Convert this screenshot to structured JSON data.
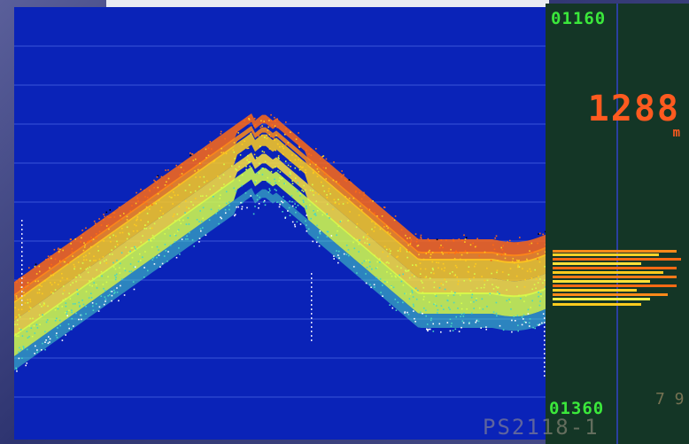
{
  "echogram": {
    "colors": {
      "water": "#0a23b8",
      "strong": "#ff6a14",
      "medium": "#ffcc1e",
      "weak": "#d6ff4a",
      "faint": "#49d6c4"
    },
    "grid": "on"
  },
  "side_panel": {
    "top_value": "01160",
    "depth_value": "1288",
    "depth_unit": "m",
    "bottom_value": "01360",
    "right_note": "7 9",
    "station_label": "PS2118-1"
  }
}
